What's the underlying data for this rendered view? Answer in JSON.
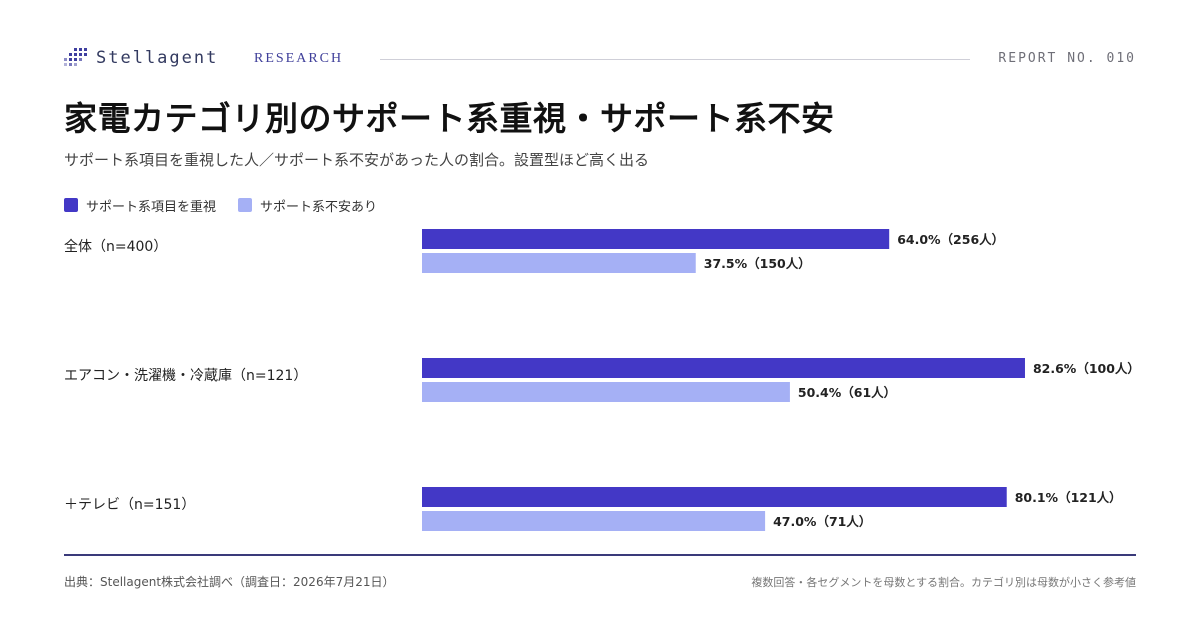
{
  "header": {
    "brand": "Stellagent",
    "section": "RESEARCH",
    "report_no": "REPORT NO. 010"
  },
  "title": "家電カテゴリ別のサポート系重視・サポート系不安",
  "subtitle": "サポート系項目を重視した人／サポート系不安があった人の割合。設置型ほど高く出る",
  "colors": {
    "accent": "#4338c6",
    "light": "#a5b0f5",
    "rule": "#3a3a7a"
  },
  "chart_data": {
    "type": "bar",
    "orientation": "horizontal",
    "categories": [
      "全体（n=400）",
      "エアコン・洗濯機・冷蔵庫（n=121）",
      "＋テレビ（n=151）"
    ],
    "series": [
      {
        "name": "サポート系項目を重視",
        "color": "#4338c6",
        "values": [
          64.0,
          82.6,
          80.1
        ],
        "labels": [
          "64.0%（256人）",
          "82.6%（100人）",
          "80.1%（121人）"
        ]
      },
      {
        "name": "サポート系不安あり",
        "color": "#a5b0f5",
        "values": [
          37.5,
          50.4,
          47.0
        ],
        "labels": [
          "37.5%（150人）",
          "50.4%（61人）",
          "47.0%（71人）"
        ]
      }
    ],
    "xlim": [
      0,
      100
    ],
    "grid": false,
    "legend": "top-left"
  },
  "footer": {
    "source": "出典：Stellagent株式会社調べ（調査日：2026年7月21日）",
    "note": "複数回答・各セグメントを母数とする割合。カテゴリ別は母数が小さく参考値"
  }
}
